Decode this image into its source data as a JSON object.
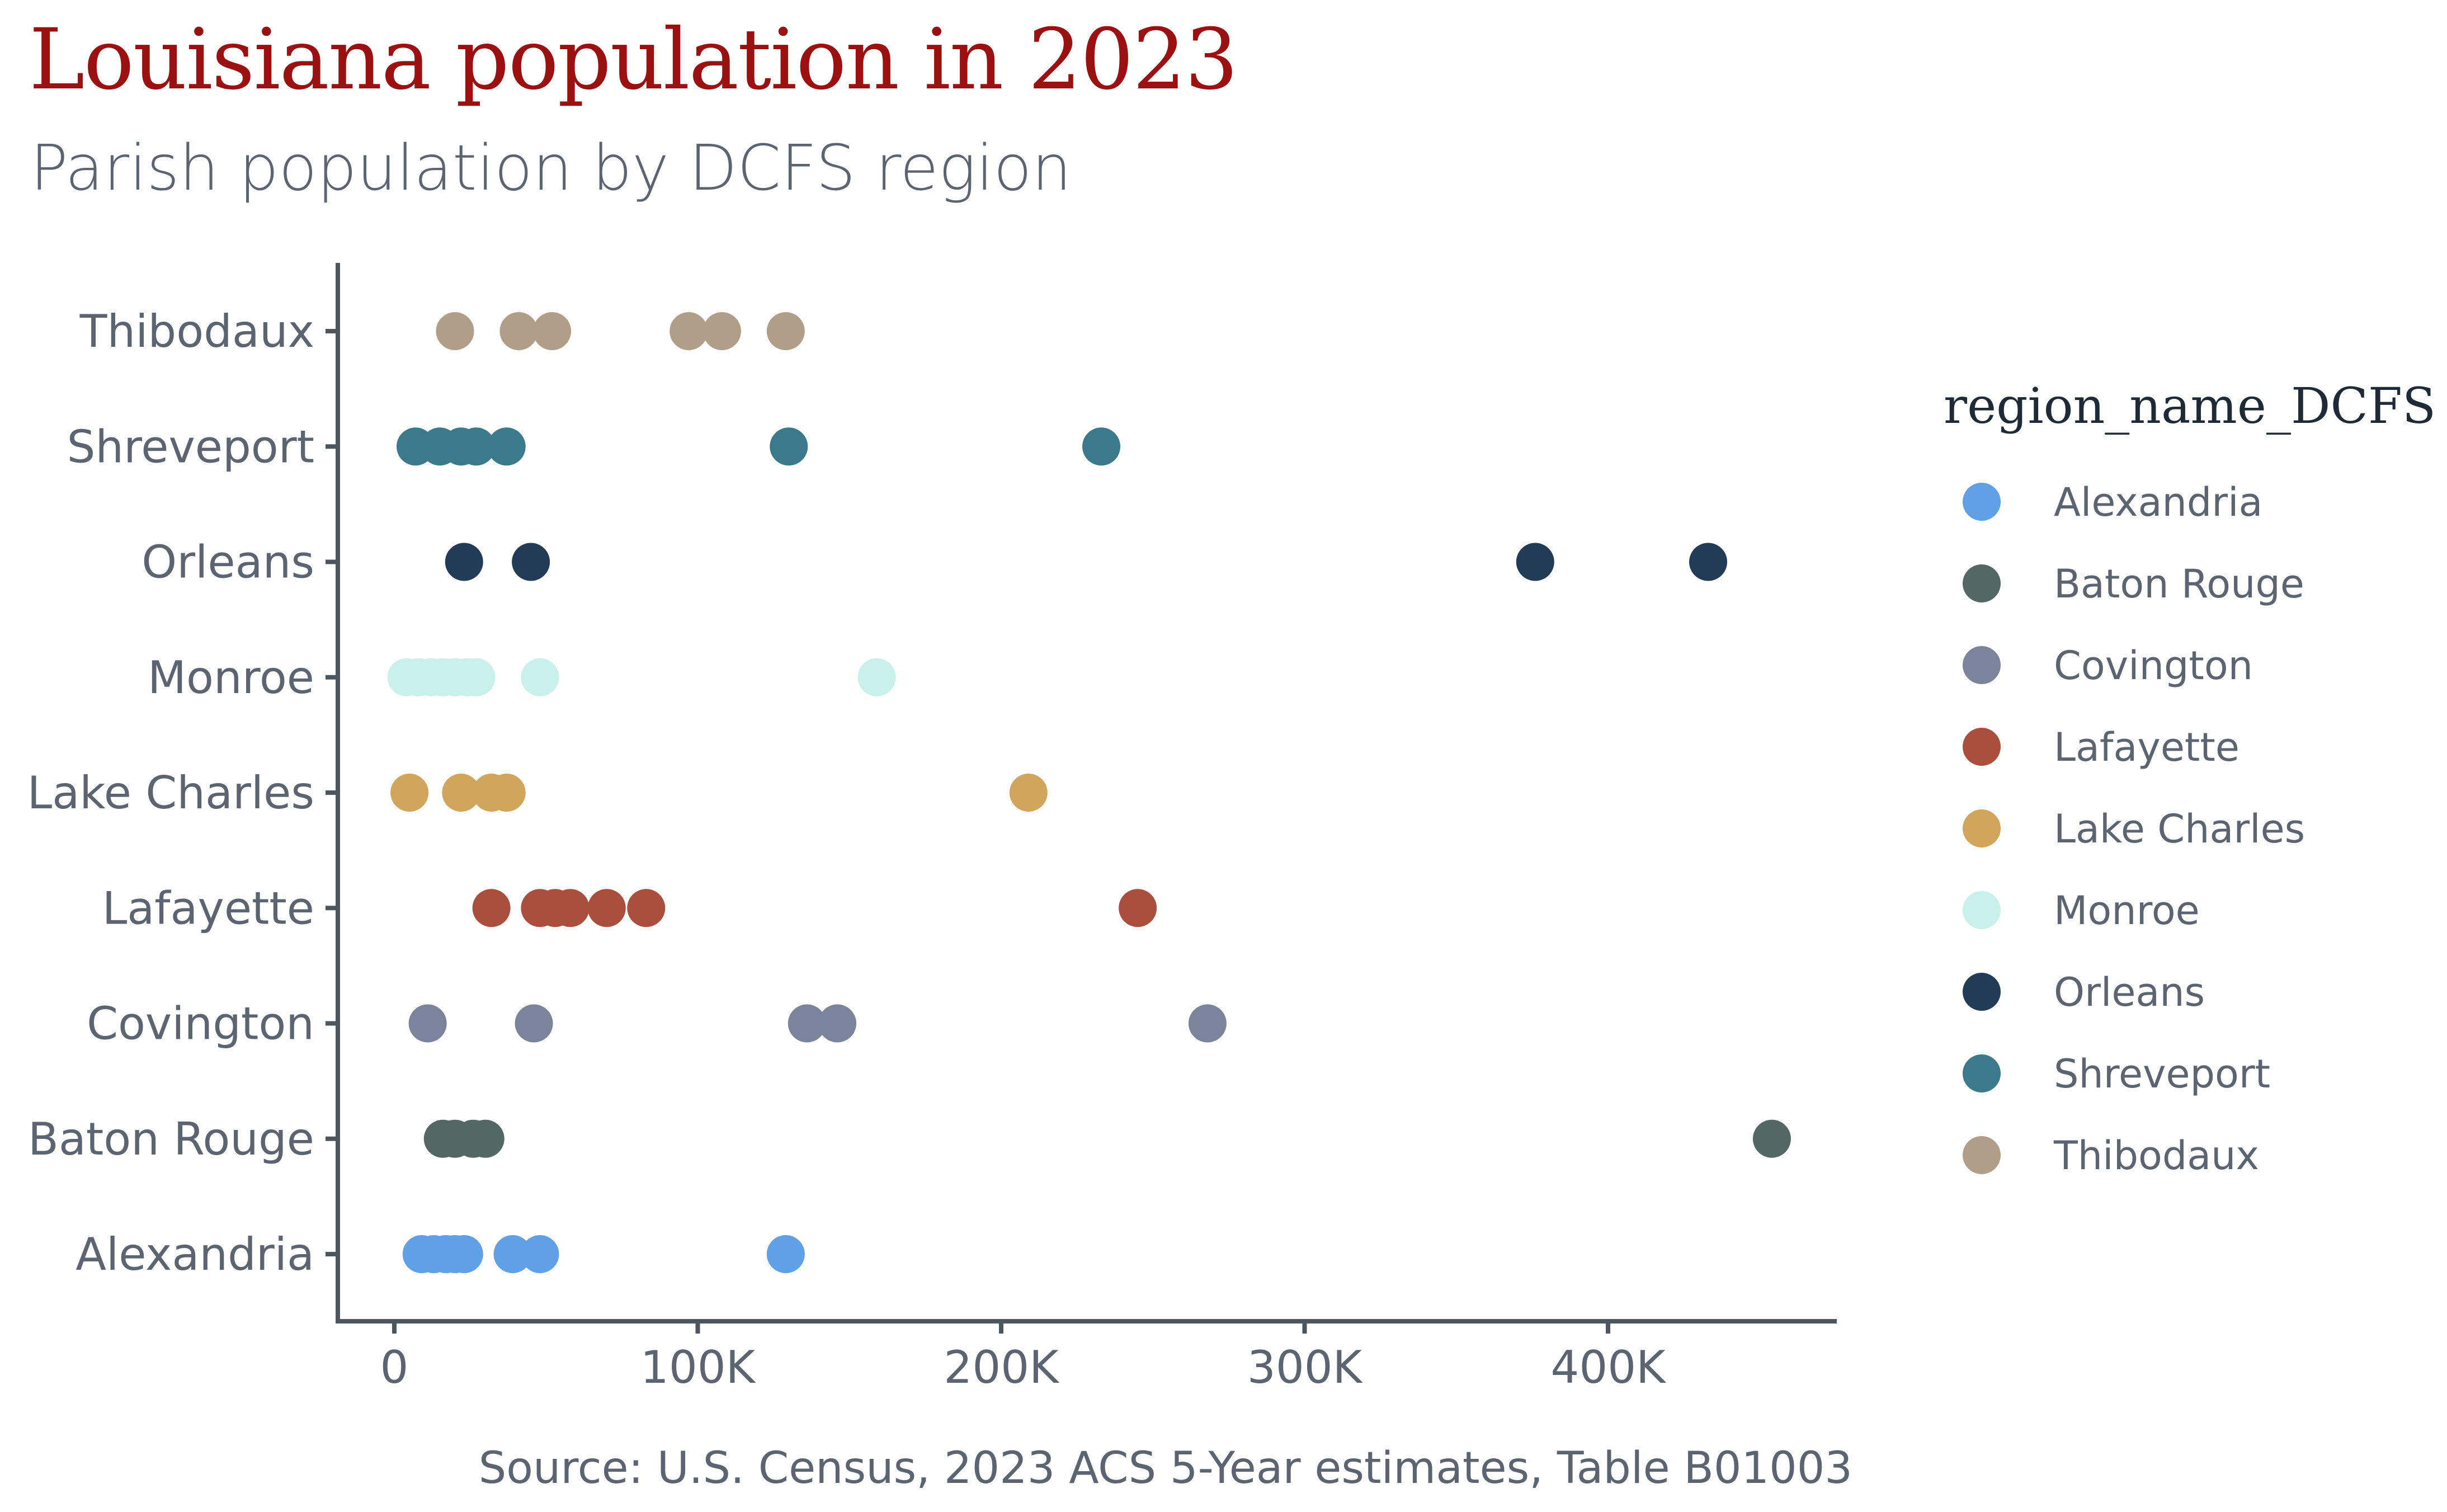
{
  "title": "Louisiana population in 2023",
  "subtitle": "Parish population by DCFS region",
  "caption": "Source: U.S. Census, 2023 ACS 5-Year estimates, Table B01003",
  "chart_data": {
    "type": "scatter",
    "title": "Louisiana population in 2023",
    "subtitle": "Parish population by DCFS region",
    "xlabel": "",
    "ylabel": "",
    "xlim": [
      -18000,
      475000
    ],
    "x_ticks": [
      0,
      100000,
      200000,
      300000,
      400000
    ],
    "x_tick_labels": [
      "0",
      "100K",
      "200K",
      "300K",
      "400K"
    ],
    "categories": [
      "Alexandria",
      "Baton Rouge",
      "Covington",
      "Lafayette",
      "Lake Charles",
      "Monroe",
      "Orleans",
      "Shreveport",
      "Thibodaux"
    ],
    "grid": false,
    "legend_title": "region_name_DCFS",
    "legend_position": "right",
    "series": [
      {
        "name": "Alexandria",
        "color": "#5fa0e6",
        "values": [
          9000,
          13000,
          17000,
          20000,
          23000,
          39000,
          48000,
          129000
        ]
      },
      {
        "name": "Baton Rouge",
        "color": "#536763",
        "values": [
          16000,
          20000,
          26000,
          30000,
          454000
        ]
      },
      {
        "name": "Covington",
        "color": "#7b849b",
        "values": [
          11000,
          46000,
          136000,
          146000,
          268000
        ]
      },
      {
        "name": "Lafayette",
        "color": "#aa4e3d",
        "values": [
          32000,
          48000,
          53000,
          58000,
          70000,
          83000,
          245000
        ]
      },
      {
        "name": "Lake Charles",
        "color": "#d2a55c",
        "values": [
          5000,
          22000,
          32000,
          37000,
          209000
        ]
      },
      {
        "name": "Monroe",
        "color": "#c9f0ea",
        "values": [
          4000,
          8000,
          12000,
          16000,
          20000,
          24000,
          27000,
          48000,
          159000
        ]
      },
      {
        "name": "Orleans",
        "color": "#223b56",
        "values": [
          23000,
          45000,
          376000,
          433000
        ]
      },
      {
        "name": "Shreveport",
        "color": "#3b7a8a",
        "values": [
          7000,
          15000,
          22000,
          27000,
          37000,
          130000,
          233000
        ]
      },
      {
        "name": "Thibodaux",
        "color": "#b09e88",
        "values": [
          20000,
          41000,
          52000,
          97000,
          108000,
          129000
        ]
      }
    ]
  }
}
